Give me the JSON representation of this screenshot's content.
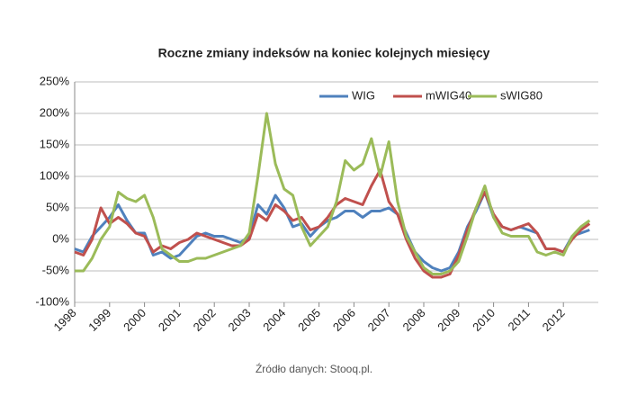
{
  "chart_data": {
    "type": "line",
    "title": "Roczne zmiany indeksów na koniec kolejnych miesięcy",
    "source": "Źródło danych: Stooq.pl.",
    "x": [
      1998,
      1998.25,
      1998.5,
      1998.75,
      1999,
      1999.25,
      1999.5,
      1999.75,
      2000,
      2000.25,
      2000.5,
      2000.75,
      2001,
      2001.25,
      2001.5,
      2001.75,
      2002,
      2002.25,
      2002.5,
      2002.75,
      2003,
      2003.25,
      2003.5,
      2003.75,
      2004,
      2004.25,
      2004.5,
      2004.75,
      2005,
      2005.25,
      2005.5,
      2005.75,
      2006,
      2006.25,
      2006.5,
      2006.75,
      2007,
      2007.25,
      2007.5,
      2007.75,
      2008,
      2008.25,
      2008.5,
      2008.75,
      2009,
      2009.25,
      2009.5,
      2009.75,
      2010,
      2010.25,
      2010.5,
      2010.75,
      2011,
      2011.25,
      2011.5,
      2011.75,
      2012,
      2012.25,
      2012.5,
      2012.75
    ],
    "series": [
      {
        "name": "WIG",
        "color": "#4f81bd",
        "values": [
          -15,
          -20,
          5,
          20,
          35,
          55,
          30,
          10,
          10,
          -25,
          -20,
          -30,
          -25,
          -10,
          5,
          10,
          5,
          5,
          0,
          -5,
          5,
          55,
          40,
          70,
          50,
          20,
          25,
          5,
          20,
          30,
          35,
          45,
          45,
          35,
          45,
          45,
          50,
          40,
          10,
          -20,
          -35,
          -45,
          -50,
          -45,
          -20,
          20,
          45,
          75,
          35,
          20,
          15,
          20,
          15,
          10,
          -15,
          -15,
          -20,
          5,
          10,
          15
        ]
      },
      {
        "name": "mWIG40",
        "color": "#c0504d",
        "values": [
          -20,
          -25,
          0,
          50,
          25,
          35,
          25,
          10,
          5,
          -20,
          -10,
          -15,
          -5,
          0,
          10,
          5,
          0,
          -5,
          -10,
          -10,
          0,
          40,
          30,
          55,
          45,
          30,
          35,
          15,
          20,
          35,
          55,
          65,
          60,
          55,
          85,
          110,
          60,
          40,
          0,
          -30,
          -50,
          -60,
          -60,
          -55,
          -25,
          15,
          50,
          75,
          40,
          20,
          15,
          20,
          25,
          10,
          -15,
          -15,
          -20,
          0,
          15,
          25
        ]
      },
      {
        "name": "sWIG80",
        "color": "#9bbb59",
        "values": [
          -50,
          -50,
          -30,
          0,
          20,
          75,
          65,
          60,
          70,
          35,
          -15,
          -25,
          -35,
          -35,
          -30,
          -30,
          -25,
          -20,
          -15,
          -10,
          10,
          100,
          200,
          120,
          80,
          70,
          20,
          -10,
          5,
          20,
          60,
          125,
          110,
          120,
          160,
          100,
          155,
          60,
          5,
          -20,
          -45,
          -55,
          -55,
          -50,
          -35,
          5,
          50,
          85,
          35,
          10,
          5,
          5,
          5,
          -20,
          -25,
          -20,
          -25,
          5,
          20,
          30
        ]
      }
    ],
    "xlim": [
      1998,
      2013
    ],
    "xticks": [
      1998,
      1999,
      2000,
      2001,
      2002,
      2003,
      2004,
      2005,
      2006,
      2007,
      2008,
      2009,
      2010,
      2011,
      2012
    ],
    "ylim": [
      -100,
      250
    ],
    "yticks": [
      {
        "value": -100,
        "label": "-100%"
      },
      {
        "value": -50,
        "label": "-50%"
      },
      {
        "value": 0,
        "label": "0%"
      },
      {
        "value": 50,
        "label": "50%"
      },
      {
        "value": 100,
        "label": "100%"
      },
      {
        "value": 150,
        "label": "150%"
      },
      {
        "value": 200,
        "label": "200%"
      },
      {
        "value": 250,
        "label": "250%"
      }
    ],
    "grid": true,
    "legend": "top-right"
  }
}
